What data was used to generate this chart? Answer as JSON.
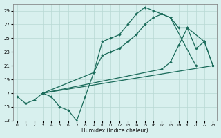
{
  "xlabel": "Humidex (Indice chaleur)",
  "bg_color": "#d8f0ee",
  "grid_color": "#b8d8d4",
  "line_color": "#1a6b5a",
  "ylim": [
    13,
    30
  ],
  "xlim": [
    -0.5,
    23.5
  ],
  "yticks": [
    13,
    15,
    17,
    19,
    21,
    23,
    25,
    27,
    29
  ],
  "xticks": [
    0,
    1,
    2,
    3,
    4,
    5,
    6,
    7,
    8,
    9,
    10,
    11,
    12,
    13,
    14,
    15,
    16,
    17,
    18,
    19,
    20,
    21,
    22,
    23
  ],
  "series1_x": [
    0,
    1,
    2,
    3,
    4,
    5,
    6,
    7,
    8,
    9,
    10,
    11,
    12,
    13,
    14,
    15,
    16,
    17,
    18,
    21
  ],
  "series1_y": [
    16.5,
    15.5,
    16.0,
    17.0,
    16.5,
    15.0,
    14.5,
    13.0,
    16.5,
    20.0,
    24.5,
    25.0,
    25.5,
    27.0,
    28.5,
    29.5,
    29.0,
    28.5,
    28.0,
    21.0
  ],
  "series2_x": [
    3,
    9,
    10,
    11,
    12,
    13,
    14,
    15,
    16,
    17,
    18,
    19,
    20,
    22,
    23
  ],
  "series2_y": [
    17.0,
    20.0,
    22.5,
    23.0,
    23.5,
    24.5,
    25.5,
    27.0,
    28.0,
    28.5,
    28.0,
    26.5,
    26.5,
    24.5,
    21.0
  ],
  "series3_x": [
    3,
    23
  ],
  "series3_y": [
    17.0,
    21.0
  ],
  "series4_x": [
    3,
    17,
    18,
    19,
    20,
    21,
    22,
    23
  ],
  "series4_y": [
    17.0,
    20.5,
    21.5,
    24.0,
    26.5,
    23.5,
    24.5,
    21.0
  ]
}
